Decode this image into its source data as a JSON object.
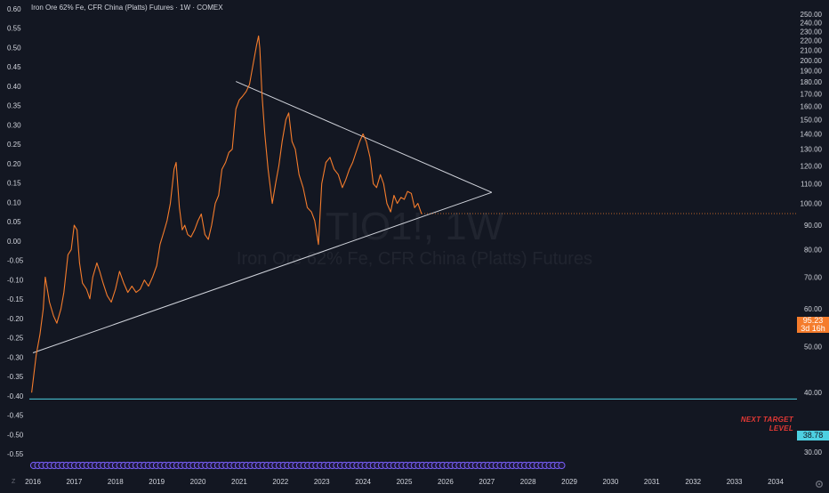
{
  "header": {
    "title": "Iron Ore 62% Fe, CFR China (Platts) Futures · 1W · COMEX"
  },
  "watermark": {
    "symbol": "TIO1!, 1W",
    "description": "Iron Ore 62% Fe, CFR China (Platts) Futures"
  },
  "price_tags": {
    "last": "95.23",
    "countdown": "3d 16h",
    "target": "38.78"
  },
  "annotation": {
    "line1": "NEXT TARGET",
    "line2": "LEVEL"
  },
  "corner": {
    "z_label": "Z"
  },
  "colors": {
    "background": "#131722",
    "price_line": "#f57c2c",
    "trendline": "#d1d4dc",
    "target_line": "#4dd0e1",
    "annotation": "#e53935",
    "event_markers": "#7b61ff"
  },
  "icons": {
    "settings": "gear-icon"
  },
  "chart_data": {
    "type": "line",
    "title": "Iron Ore 62% Fe, CFR China (Platts) Futures · 1W · COMEX",
    "xlabel": "",
    "ylabel": "",
    "x_ticks": [
      "2016",
      "2017",
      "2018",
      "2019",
      "2020",
      "2021",
      "2022",
      "2023",
      "2024",
      "2025",
      "2026",
      "2027",
      "2028",
      "2029",
      "2030",
      "2031",
      "2032",
      "2033",
      "2034"
    ],
    "x_range": [
      2015.97,
      2034.55
    ],
    "left_axis": {
      "ticks": [
        "0.60",
        "0.55",
        "0.50",
        "0.45",
        "0.40",
        "0.35",
        "0.30",
        "0.25",
        "0.20",
        "0.15",
        "0.10",
        "0.05",
        "0.00",
        "-0.05",
        "-0.10",
        "-0.15",
        "-0.20",
        "-0.25",
        "-0.30",
        "-0.35",
        "-0.40",
        "-0.45",
        "-0.50",
        "-0.55"
      ],
      "range": [
        -0.55,
        0.6
      ]
    },
    "right_axis": {
      "ticks": [
        "250.00",
        "240.00",
        "230.00",
        "220.00",
        "210.00",
        "200.00",
        "190.00",
        "180.00",
        "170.00",
        "160.00",
        "150.00",
        "140.00",
        "130.00",
        "120.00",
        "110.00",
        "100.00",
        "90.00",
        "80.00",
        "70.00",
        "60.00",
        "50.00",
        "40.00",
        "30.00"
      ],
      "range": [
        30,
        250
      ],
      "scale": "log"
    },
    "series": [
      {
        "type": "line",
        "x": [
          2015.97,
          2016.08,
          2016.17,
          2016.25,
          2016.3,
          2016.4,
          2016.5,
          2016.58,
          2016.68,
          2016.75,
          2016.85,
          2016.93,
          2017.0,
          2017.07,
          2017.13,
          2017.2,
          2017.3,
          2017.38,
          2017.45,
          2017.55,
          2017.62,
          2017.7,
          2017.8,
          2017.9,
          2018.0,
          2018.1,
          2018.2,
          2018.3,
          2018.4,
          2018.5,
          2018.6,
          2018.7,
          2018.8,
          2018.9,
          2019.0,
          2019.08,
          2019.17,
          2019.25,
          2019.33,
          2019.42,
          2019.47,
          2019.55,
          2019.62,
          2019.68,
          2019.75,
          2019.83,
          2019.92,
          2020.0,
          2020.08,
          2020.17,
          2020.25,
          2020.33,
          2020.42,
          2020.5,
          2020.58,
          2020.67,
          2020.75,
          2020.83,
          2020.92,
          2021.0,
          2021.08,
          2021.17,
          2021.25,
          2021.33,
          2021.42,
          2021.47,
          2021.5,
          2021.55,
          2021.62,
          2021.7,
          2021.8,
          2021.88,
          2021.96,
          2022.04,
          2022.13,
          2022.2,
          2022.28,
          2022.36,
          2022.45,
          2022.55,
          2022.65,
          2022.75,
          2022.83,
          2022.92,
          2023.0,
          2023.1,
          2023.2,
          2023.3,
          2023.4,
          2023.5,
          2023.58,
          2023.67,
          2023.75,
          2023.83,
          2023.92,
          2024.0,
          2024.08,
          2024.17,
          2024.25,
          2024.33,
          2024.42,
          2024.5,
          2024.58,
          2024.67,
          2024.75,
          2024.83,
          2024.92,
          2025.0,
          2025.08,
          2025.17,
          2025.25,
          2025.33,
          2025.42
        ],
        "y": [
          40,
          48,
          53,
          60,
          70,
          62,
          58,
          56,
          60,
          65,
          78,
          80,
          90,
          88,
          75,
          68,
          66,
          63,
          70,
          75,
          72,
          68,
          64,
          62,
          66,
          72,
          68,
          65,
          67,
          65,
          66,
          69,
          67,
          70,
          74,
          82,
          87,
          92,
          100,
          118,
          122,
          98,
          88,
          90,
          86,
          85,
          88,
          92,
          95,
          86,
          84,
          90,
          100,
          104,
          118,
          122,
          128,
          130,
          158,
          165,
          168,
          172,
          178,
          195,
          215,
          225,
          212,
          170,
          140,
          118,
          100,
          110,
          120,
          135,
          150,
          155,
          135,
          130,
          115,
          108,
          98,
          96,
          92,
          82,
          110,
          122,
          125,
          118,
          115,
          108,
          112,
          118,
          122,
          128,
          135,
          140,
          135,
          125,
          110,
          108,
          115,
          110,
          100,
          96,
          104,
          100,
          103,
          102,
          106,
          105,
          98,
          100,
          95
        ],
        "name": ""
      }
    ],
    "trendlines": [
      {
        "from": [
          2016.0,
          48.5
        ],
        "to": [
          2027.12,
          105.5
        ]
      },
      {
        "from": [
          2020.92,
          180.5
        ],
        "to": [
          2027.12,
          105.5
        ]
      }
    ],
    "horizontal_lines": [
      {
        "y": 38.78
      }
    ],
    "last_price": 95.23,
    "grid": false,
    "legend": "none"
  }
}
